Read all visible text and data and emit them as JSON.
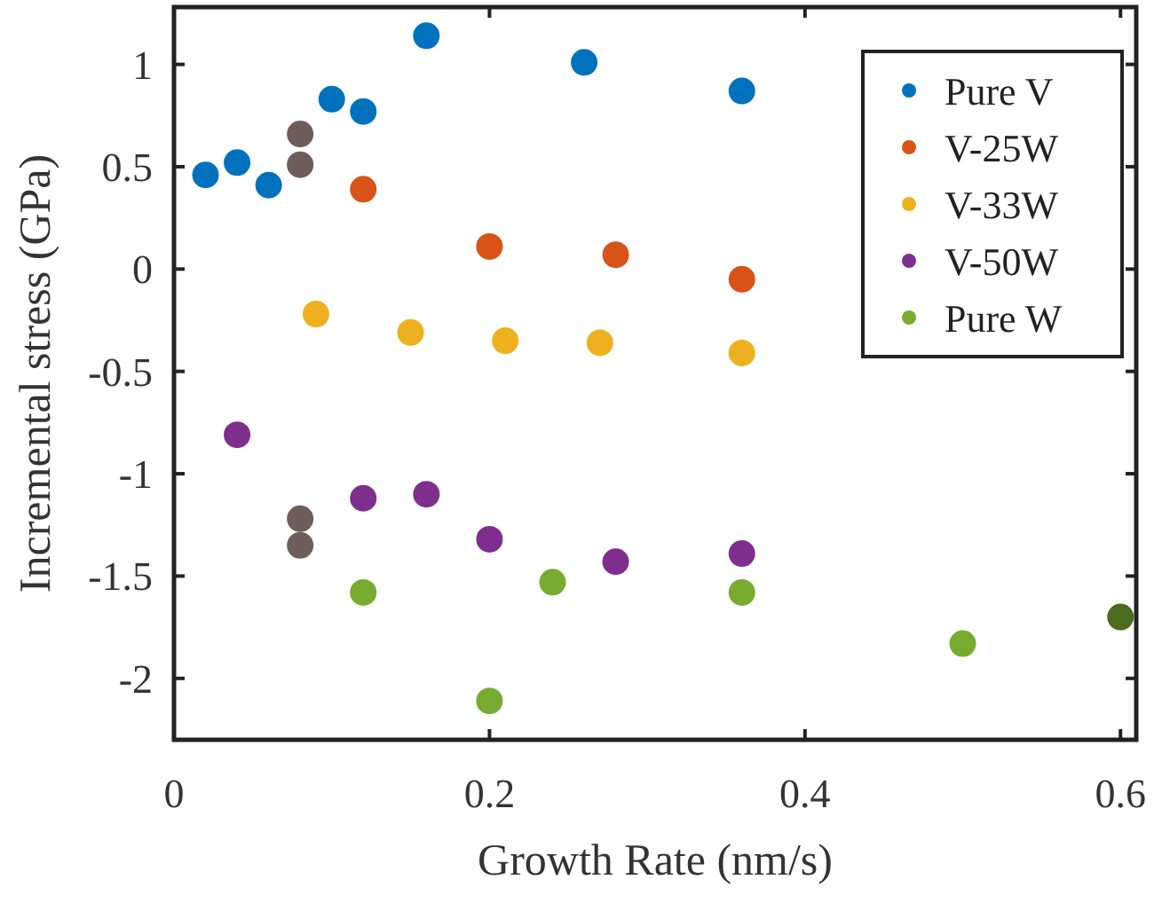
{
  "chart_data": {
    "type": "scatter",
    "xlabel": "Growth Rate (nm/s)",
    "ylabel": "Incremental stress (GPa)",
    "xlim": [
      0,
      0.61
    ],
    "ylim": [
      -2.3,
      1.28
    ],
    "xticks": [
      0,
      0.2,
      0.4,
      0.6
    ],
    "yticks": [
      -2,
      -1.5,
      -1,
      -0.5,
      0,
      0.5,
      1
    ],
    "grid": false,
    "legend": "top right",
    "marker": "circle",
    "series": [
      {
        "name": "Pure V",
        "color": "#0072bd",
        "x": [
          0.02,
          0.04,
          0.06,
          0.1,
          0.12,
          0.16,
          0.26,
          0.36
        ],
        "values": [
          0.46,
          0.52,
          0.41,
          0.83,
          0.77,
          1.14,
          1.01,
          0.87
        ]
      },
      {
        "name": "V-25W",
        "color": "#d95319",
        "x": [
          0.12,
          0.2,
          0.28,
          0.36
        ],
        "values": [
          0.39,
          0.11,
          0.07,
          -0.05
        ]
      },
      {
        "name": "V-33W",
        "color": "#edb120",
        "x": [
          0.09,
          0.15,
          0.21,
          0.27,
          0.36
        ],
        "values": [
          -0.22,
          -0.31,
          -0.35,
          -0.36,
          -0.41
        ]
      },
      {
        "name": "V-50W",
        "color": "#7e2f8e",
        "x": [
          0.04,
          0.12,
          0.16,
          0.2,
          0.28,
          0.36
        ],
        "values": [
          -0.81,
          -1.12,
          -1.1,
          -1.32,
          -1.43,
          -1.39
        ]
      },
      {
        "name": "Pure W",
        "color": "#77ac30",
        "x": [
          0.12,
          0.2,
          0.24,
          0.36,
          0.5
        ],
        "values": [
          -1.58,
          -2.11,
          -1.53,
          -1.58,
          -1.83
        ]
      },
      {
        "color": "#6e5c5a",
        "x": [
          0.08,
          0.08,
          0.08,
          0.08
        ],
        "values": [
          0.66,
          0.51,
          -1.22,
          -1.35
        ]
      },
      {
        "color": "#4b6b1f",
        "x": [
          0.6
        ],
        "values": [
          -1.7
        ]
      }
    ]
  }
}
